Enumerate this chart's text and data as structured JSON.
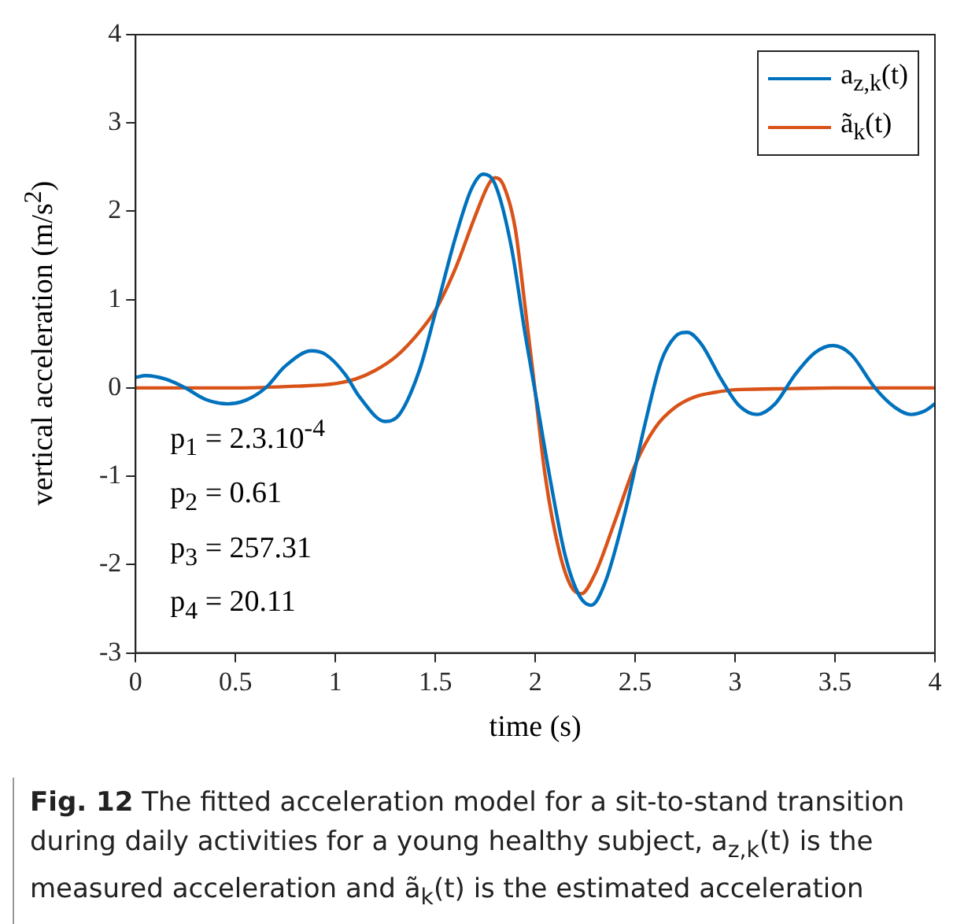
{
  "chart_data": {
    "type": "line",
    "xlabel": "time (s)",
    "ylabel": "vertical acceleration (m/s$^{2}$)",
    "xlim": [
      0,
      4
    ],
    "xticks": [
      0,
      0.5,
      1,
      1.5,
      2,
      2.5,
      3,
      3.5,
      4
    ],
    "ylim": [
      -3,
      4
    ],
    "yticks": [
      -3,
      -2,
      -1,
      0,
      1,
      2,
      3,
      4
    ],
    "grid": false,
    "legend": "top right",
    "marker": "none",
    "line_style": "solid",
    "series": [
      {
        "name": "a$_{z,k}$(t)",
        "color": "#0072bd",
        "x": [
          0,
          0.05,
          0.15,
          0.25,
          0.35,
          0.46,
          0.55,
          0.65,
          0.75,
          0.88,
          0.95,
          1.05,
          1.12,
          1.25,
          1.32,
          1.42,
          1.5,
          1.6,
          1.68,
          1.74,
          1.8,
          1.88,
          1.95,
          2.0,
          2.08,
          2.15,
          2.22,
          2.28,
          2.35,
          2.45,
          2.55,
          2.63,
          2.7,
          2.76,
          2.83,
          2.93,
          3.02,
          3.11,
          3.2,
          3.3,
          3.4,
          3.49,
          3.58,
          3.7,
          3.8,
          3.88,
          3.95,
          4.0
        ],
        "values": [
          0.12,
          0.14,
          0.1,
          0.0,
          -0.13,
          -0.18,
          -0.14,
          0.0,
          0.25,
          0.42,
          0.38,
          0.15,
          -0.1,
          -0.38,
          -0.3,
          0.2,
          0.85,
          1.7,
          2.25,
          2.42,
          2.3,
          1.6,
          0.6,
          -0.05,
          -1.1,
          -1.9,
          -2.35,
          -2.46,
          -2.2,
          -1.4,
          -0.4,
          0.3,
          0.58,
          0.63,
          0.5,
          0.1,
          -0.2,
          -0.3,
          -0.18,
          0.15,
          0.4,
          0.48,
          0.38,
          0.0,
          -0.22,
          -0.3,
          -0.26,
          -0.18
        ]
      },
      {
        "name": "ã$_{k}$(t)",
        "color": "#d95319",
        "x": [
          0,
          0.5,
          0.8,
          1.0,
          1.1,
          1.2,
          1.3,
          1.4,
          1.5,
          1.6,
          1.7,
          1.77,
          1.8,
          1.84,
          1.9,
          1.95,
          2.0,
          2.05,
          2.12,
          2.18,
          2.23,
          2.3,
          2.4,
          2.5,
          2.6,
          2.7,
          2.8,
          2.9,
          3.0,
          3.2,
          3.5,
          4.0
        ],
        "values": [
          0,
          0,
          0.02,
          0.05,
          0.1,
          0.2,
          0.35,
          0.58,
          0.88,
          1.35,
          1.95,
          2.32,
          2.38,
          2.3,
          1.8,
          0.9,
          -0.05,
          -1.0,
          -1.85,
          -2.25,
          -2.33,
          -2.1,
          -1.5,
          -0.87,
          -0.45,
          -0.22,
          -0.1,
          -0.05,
          -0.02,
          -0.01,
          0,
          0
        ]
      }
    ],
    "annotations": [
      {
        "text": "p$_{1}$ = 2.3.10$^{-4}$"
      },
      {
        "text": "p$_{2}$ = 0.61"
      },
      {
        "text": "p$_{3}$ = 257.31"
      },
      {
        "text": "p$_{4}$ = 20.11"
      },
      {
        "text": "Fig. 12"
      },
      {
        "text": "The fitted acceleration model for a sit-to-stand transition during daily activities for a young healthy subject, a$_{z,k}$(t) is the measured acceleration and ã$_{k}$(t) is the estimated acceleration"
      }
    ]
  }
}
